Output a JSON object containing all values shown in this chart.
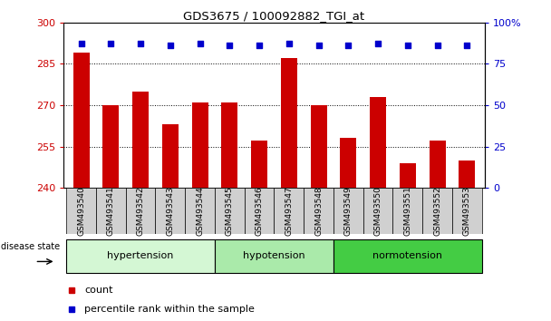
{
  "title": "GDS3675 / 100092882_TGI_at",
  "samples": [
    "GSM493540",
    "GSM493541",
    "GSM493542",
    "GSM493543",
    "GSM493544",
    "GSM493545",
    "GSM493546",
    "GSM493547",
    "GSM493548",
    "GSM493549",
    "GSM493550",
    "GSM493551",
    "GSM493552",
    "GSM493553"
  ],
  "counts": [
    289,
    270,
    275,
    263,
    271,
    271,
    257,
    287,
    270,
    258,
    273,
    249,
    257,
    250
  ],
  "percentiles": [
    87,
    87,
    87,
    86,
    87,
    86,
    86,
    87,
    86,
    86,
    87,
    86,
    86,
    86
  ],
  "groups": [
    {
      "label": "hypertension",
      "start": 0,
      "end": 5,
      "color": "#d4f7d4"
    },
    {
      "label": "hypotension",
      "start": 5,
      "end": 9,
      "color": "#aaeaaa"
    },
    {
      "label": "normotension",
      "start": 9,
      "end": 14,
      "color": "#44cc44"
    }
  ],
  "ylim_left": [
    240,
    300
  ],
  "ylim_right": [
    0,
    100
  ],
  "yticks_left": [
    240,
    255,
    270,
    285,
    300
  ],
  "yticks_right": [
    0,
    25,
    50,
    75,
    100
  ],
  "bar_color": "#cc0000",
  "dot_color": "#0000cc",
  "bg_color": "#d0d0d0",
  "grid_color": "black",
  "count_label": "count",
  "percentile_label": "percentile rank within the sample",
  "disease_state_label": "disease state"
}
